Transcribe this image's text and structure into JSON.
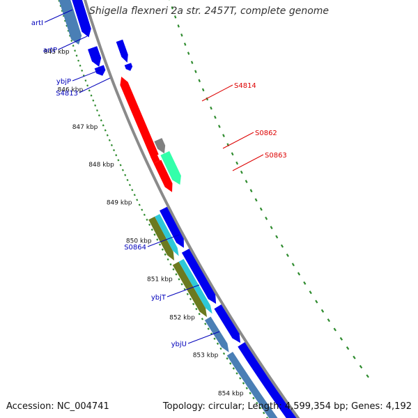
{
  "title": "Shigella flexneri 2a str. 2457T, complete genome",
  "footer": {
    "accession": "Accession: NC_004741",
    "summary": "Topology: circular; Length: 4,599,354 bp; Genes: 4,192"
  },
  "colors": {
    "backbone": "#8a8a8a",
    "ruler_dots": "#2e8b2e",
    "forward_cds": "#0000ee",
    "reverse_cds": "#ff0000",
    "gene_steelblue": "#4a7fb5",
    "gene_olive": "#6b7a1f",
    "gene_cyan": "#2ec8d8",
    "gene_spring": "#33ffaa",
    "gene_gray": "#808080",
    "label_blue": "#0000bb",
    "label_red": "#dd0000"
  },
  "kbp_ticks": [
    "845 kbp",
    "846 kbp",
    "847 kbp",
    "848 kbp",
    "849 kbp",
    "850 kbp",
    "851 kbp",
    "852 kbp",
    "853 kbp",
    "854 kbp"
  ],
  "left_labels": [
    "artI",
    "artP",
    "ybjP",
    "S4813",
    "S0864",
    "ybjT",
    "ybjU"
  ],
  "right_labels": [
    "S4814",
    "S0862",
    "S0863"
  ]
}
